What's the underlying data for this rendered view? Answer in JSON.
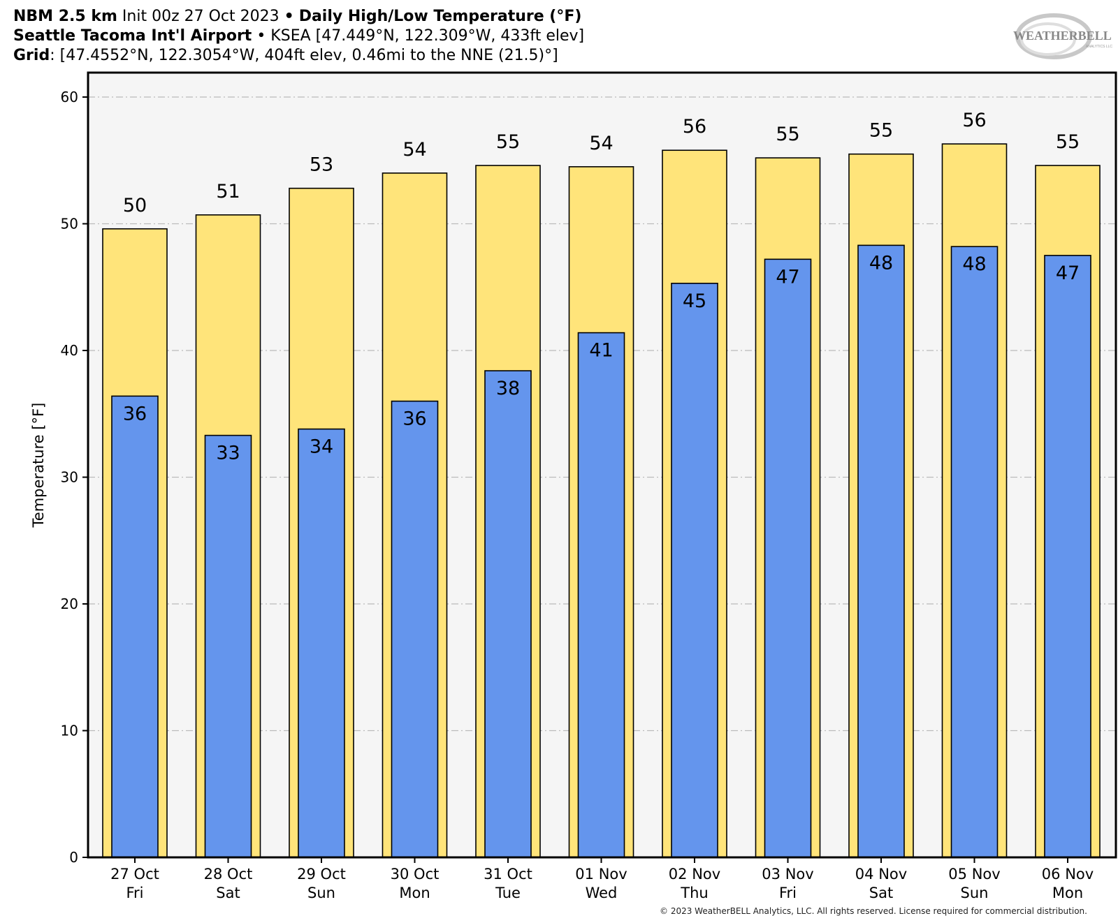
{
  "header": {
    "line1_bold": "NBM 2.5 km",
    "line1_init": "Init 00z 27 Oct 2023",
    "line1_sep": "•",
    "line1_product": "Daily High/Low Temperature (°F)",
    "line2_bold": "Seattle Tacoma Int'l Airport",
    "line2_sep": "•",
    "line2_rest": "KSEA [47.449°N, 122.309°W, 433ft elev]",
    "line3_bold": "Grid",
    "line3_rest": ": [47.4552°N, 122.3054°W, 404ft elev, 0.46mi to the NNE (21.5)°]"
  },
  "logo": {
    "text": "WEATHERBELL",
    "sub": "ANALYTICS LLC"
  },
  "copyright": "© 2023 WeatherBELL Analytics, LLC. All rights reserved. License required for commercial distribution.",
  "colors": {
    "high": "#ffe47a",
    "low": "#6495ed",
    "plot_bg": "#f5f5f5",
    "grid": "#bbbbbb"
  },
  "chart_data": {
    "type": "bar",
    "title": "Daily High/Low Temperature (°F)",
    "ylabel": "Temperature [°F]",
    "xlabel": "",
    "ylim": [
      0,
      60
    ],
    "yticks": [
      0,
      10,
      20,
      30,
      40,
      50,
      60
    ],
    "grid": true,
    "categories": [
      [
        "27 Oct",
        "Fri"
      ],
      [
        "28 Oct",
        "Sat"
      ],
      [
        "29 Oct",
        "Sun"
      ],
      [
        "30 Oct",
        "Mon"
      ],
      [
        "31 Oct",
        "Tue"
      ],
      [
        "01 Nov",
        "Wed"
      ],
      [
        "02 Nov",
        "Thu"
      ],
      [
        "03 Nov",
        "Fri"
      ],
      [
        "04 Nov",
        "Sat"
      ],
      [
        "05 Nov",
        "Sun"
      ],
      [
        "06 Nov",
        "Mon"
      ]
    ],
    "series": [
      {
        "key": "high",
        "values": [
          49.6,
          50.7,
          52.8,
          54.0,
          54.6,
          54.5,
          55.8,
          55.2,
          55.5,
          56.3,
          54.6
        ],
        "labels": [
          "50",
          "51",
          "53",
          "54",
          "55",
          "54",
          "56",
          "55",
          "55",
          "56",
          "55"
        ]
      },
      {
        "key": "low",
        "values": [
          36.4,
          33.3,
          33.8,
          36.0,
          38.4,
          41.4,
          45.3,
          47.2,
          48.3,
          48.2,
          47.5
        ],
        "labels": [
          "36",
          "33",
          "34",
          "36",
          "38",
          "41",
          "45",
          "47",
          "48",
          "48",
          "47"
        ]
      }
    ]
  }
}
